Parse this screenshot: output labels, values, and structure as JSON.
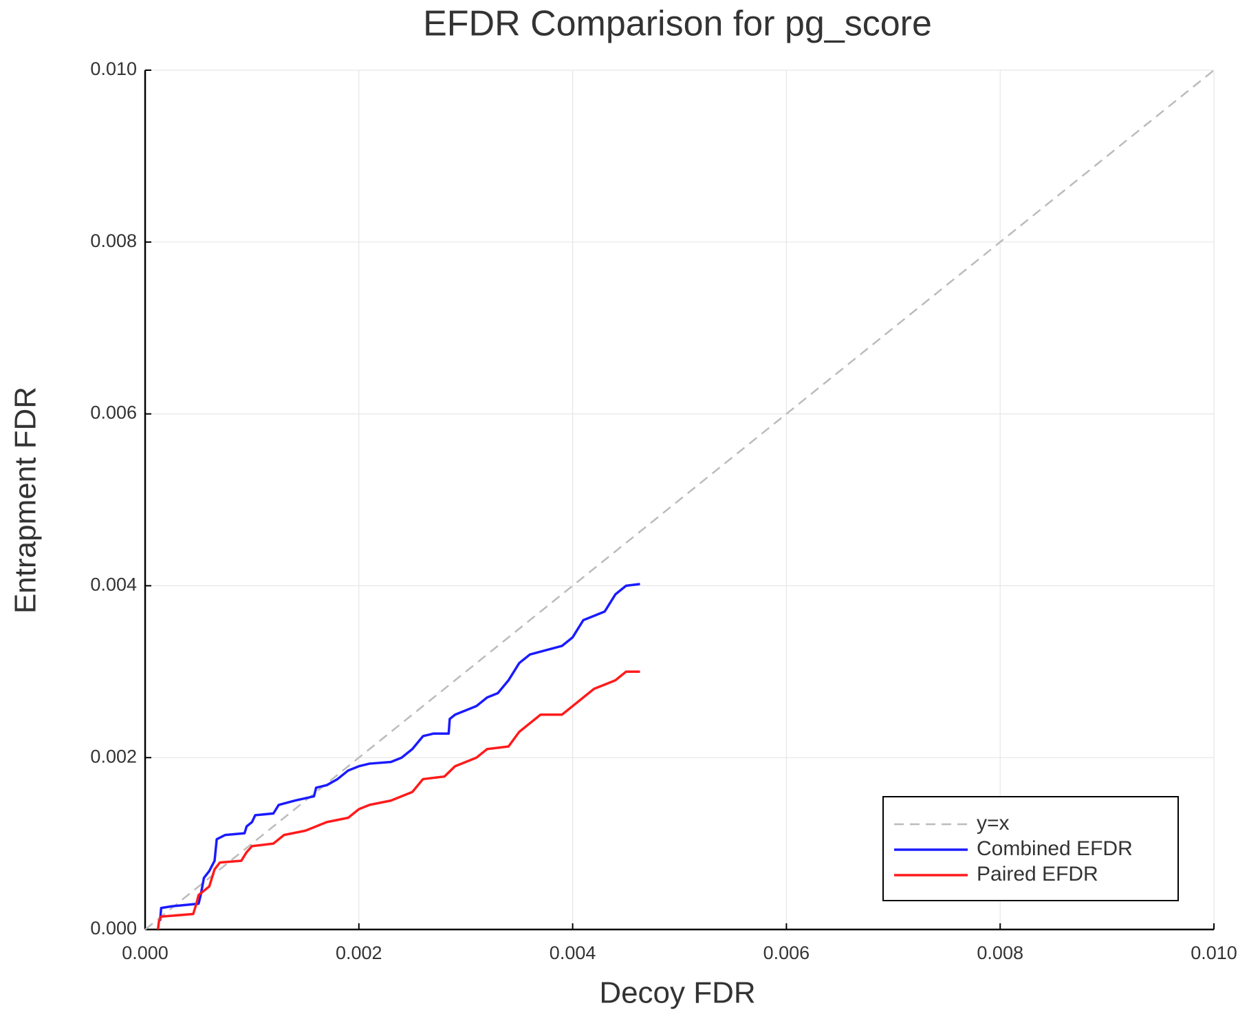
{
  "chart_data": {
    "type": "line",
    "title": "EFDR Comparison for pg_score",
    "x_label": "Decoy FDR",
    "y_label": "Entrapment FDR",
    "xlim": [
      0,
      0.01
    ],
    "ylim": [
      0,
      0.01
    ],
    "xticks": [
      {
        "value": 0,
        "label": "0.000"
      },
      0.002,
      0.004,
      0.006,
      0.008,
      {
        "value": 0.01,
        "label": "0.010"
      }
    ],
    "yticks": [
      {
        "value": 0,
        "label": "0.000"
      },
      0.002,
      0.004,
      0.006,
      0.008,
      {
        "value": 0.01,
        "label": "0.010"
      }
    ],
    "grid": true,
    "legend": "lower right",
    "series": [
      {
        "name": "y=x",
        "color": "#bbbbbb",
        "dash": true,
        "x": [
          0,
          0.01
        ],
        "values": [
          0,
          0.01
        ]
      },
      {
        "name": "Combined EFDR",
        "color": "#1a1aff",
        "x": [
          0.00014,
          0.00015,
          0.00025,
          0.0005,
          0.00052,
          0.00055,
          0.0006,
          0.00065,
          0.00067,
          0.00075,
          0.00093,
          0.00095,
          0.001,
          0.00103,
          0.0012,
          0.00125,
          0.0014,
          0.00158,
          0.0016,
          0.0017,
          0.0018,
          0.0019,
          0.002,
          0.0021,
          0.0023,
          0.0024,
          0.0025,
          0.0026,
          0.0027,
          0.00284,
          0.00285,
          0.0029,
          0.003,
          0.0031,
          0.0032,
          0.0033,
          0.0034,
          0.0035,
          0.0036,
          0.0039,
          0.004,
          0.0041,
          0.0042,
          0.0043,
          0.0044,
          0.0045,
          0.00463
        ],
        "values": [
          0.0001,
          0.00025,
          0.00027,
          0.0003,
          0.0004,
          0.0006,
          0.00068,
          0.0008,
          0.00105,
          0.0011,
          0.00112,
          0.0012,
          0.00125,
          0.00133,
          0.00135,
          0.00145,
          0.0015,
          0.00155,
          0.00165,
          0.00168,
          0.00175,
          0.00185,
          0.0019,
          0.00193,
          0.00195,
          0.002,
          0.0021,
          0.00225,
          0.00228,
          0.00228,
          0.00245,
          0.0025,
          0.00255,
          0.0026,
          0.0027,
          0.00275,
          0.0029,
          0.0031,
          0.0032,
          0.0033,
          0.0034,
          0.0036,
          0.00365,
          0.0037,
          0.0039,
          0.004,
          0.00402
        ]
      },
      {
        "name": "Paired EFDR",
        "color": "#ff1a1a",
        "x": [
          0.00012,
          0.00013,
          0.00015,
          0.00045,
          0.00048,
          0.0005,
          0.0006,
          0.00065,
          0.0007,
          0.0009,
          0.00095,
          0.001,
          0.0012,
          0.0013,
          0.0015,
          0.0016,
          0.0017,
          0.0019,
          0.002,
          0.0021,
          0.0023,
          0.0024,
          0.0025,
          0.0026,
          0.0028,
          0.0029,
          0.003,
          0.0031,
          0.0032,
          0.0034,
          0.0035,
          0.0036,
          0.0037,
          0.0039,
          0.004,
          0.0041,
          0.0042,
          0.0044,
          0.0045,
          0.00463
        ],
        "values": [
          0,
          0.0001,
          0.00015,
          0.00018,
          0.0003,
          0.0004,
          0.0005,
          0.0007,
          0.00078,
          0.0008,
          0.0009,
          0.00097,
          0.001,
          0.0011,
          0.00115,
          0.0012,
          0.00125,
          0.0013,
          0.0014,
          0.00145,
          0.0015,
          0.00155,
          0.0016,
          0.00175,
          0.00178,
          0.0019,
          0.00195,
          0.002,
          0.0021,
          0.00213,
          0.0023,
          0.0024,
          0.0025,
          0.0025,
          0.0026,
          0.0027,
          0.0028,
          0.0029,
          0.003,
          0.003
        ]
      }
    ]
  }
}
